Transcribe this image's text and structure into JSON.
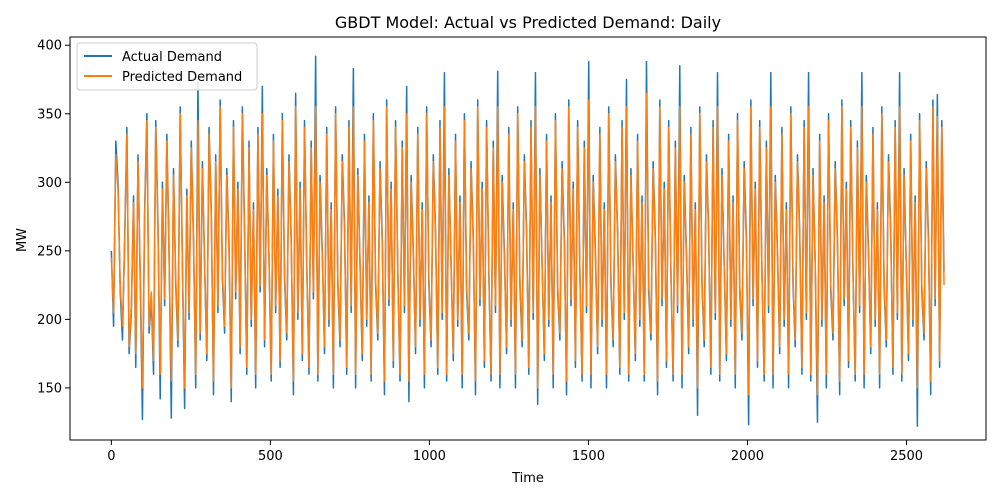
{
  "chart_data": {
    "type": "line",
    "title": "GBDT Model: Actual vs Predicted Demand: Daily",
    "xlabel": "Time",
    "ylabel": "MW",
    "xlim": [
      -130,
      2750
    ],
    "ylim": [
      112,
      406
    ],
    "x_ticks": [
      0,
      500,
      1000,
      1500,
      2000,
      2500
    ],
    "y_ticks": [
      150,
      200,
      250,
      300,
      350,
      400
    ],
    "x_range": [
      0,
      2618
    ],
    "grid": false,
    "legend_position": "top-left",
    "series": [
      {
        "name": "Actual Demand",
        "color": "#1f77b4",
        "values": [
          250,
          195,
          330,
          300,
          220,
          185,
          260,
          340,
          175,
          205,
          290,
          165,
          320,
          230,
          127,
          280,
          350,
          190,
          215,
          160,
          345,
          270,
          142,
          300,
          210,
          335,
          250,
          128,
          310,
          225,
          180,
          355,
          240,
          135,
          295,
          200,
          330,
          260,
          150,
          375,
          185,
          315,
          240,
          170,
          340,
          280,
          145,
          320,
          205,
          360,
          230,
          190,
          310,
          255,
          140,
          345,
          215,
          300,
          175,
          355,
          265,
          160,
          330,
          195,
          285,
          150,
          340,
          220,
          370,
          180,
          310,
          245,
          155,
          335,
          205,
          295,
          165,
          350,
          230,
          185,
          320,
          260,
          145,
          365,
          200,
          300,
          170,
          345,
          240,
          160,
          330,
          215,
          392,
          155,
          305,
          250,
          175,
          340,
          195,
          285,
          150,
          355,
          225,
          180,
          320,
          270,
          160,
          345,
          205,
          383,
          150,
          310,
          240,
          170,
          335,
          195,
          290,
          155,
          350,
          225,
          185,
          315,
          260,
          145,
          360,
          210,
          300,
          165,
          345,
          235,
          155,
          330,
          205,
          370,
          140,
          305,
          250,
          175,
          340,
          195,
          285,
          150,
          355,
          225,
          180,
          320,
          265,
          160,
          345,
          200,
          380,
          155,
          310,
          240,
          170,
          335,
          195,
          290,
          150,
          350,
          220,
          185,
          315,
          260,
          145,
          360,
          210,
          300,
          165,
          345,
          235,
          155,
          330,
          205,
          381,
          150,
          305,
          250,
          175,
          340,
          195,
          285,
          150,
          355,
          225,
          180,
          320,
          265,
          160,
          345,
          200,
          380,
          138,
          310,
          240,
          170,
          335,
          195,
          290,
          150,
          350,
          220,
          185,
          315,
          260,
          145,
          360,
          210,
          300,
          165,
          345,
          235,
          155,
          330,
          205,
          388,
          150,
          305,
          250,
          175,
          340,
          195,
          285,
          150,
          355,
          225,
          180,
          320,
          265,
          160,
          345,
          200,
          375,
          155,
          310,
          240,
          170,
          335,
          195,
          290,
          155,
          388,
          220,
          185,
          315,
          260,
          145,
          360,
          210,
          300,
          165,
          345,
          235,
          155,
          330,
          205,
          385,
          150,
          305,
          250,
          175,
          340,
          195,
          285,
          130,
          355,
          225,
          180,
          320,
          265,
          160,
          345,
          200,
          380,
          155,
          310,
          240,
          170,
          335,
          195,
          290,
          150,
          350,
          220,
          185,
          315,
          260,
          123,
          360,
          210,
          300,
          165,
          345,
          235,
          155,
          330,
          205,
          380,
          150,
          305,
          250,
          175,
          340,
          195,
          285,
          150,
          355,
          225,
          180,
          320,
          265,
          160,
          345,
          200,
          380,
          155,
          310,
          240,
          125,
          335,
          195,
          290,
          150,
          350,
          220,
          185,
          315,
          260,
          145,
          360,
          210,
          300,
          165,
          345,
          235,
          155,
          330,
          205,
          380,
          150,
          305,
          250,
          175,
          340,
          195,
          285,
          150,
          355,
          225,
          180,
          320,
          265,
          160,
          345,
          200,
          380,
          155,
          310,
          240,
          170,
          335,
          195,
          290,
          122,
          350,
          220,
          185,
          315,
          260,
          145,
          360,
          210,
          364,
          165,
          345,
          235
        ]
      },
      {
        "name": "Predicted Demand",
        "color": "#ff7f0e",
        "values": [
          245,
          205,
          320,
          295,
          225,
          195,
          255,
          335,
          180,
          210,
          285,
          175,
          315,
          235,
          150,
          275,
          345,
          195,
          220,
          170,
          340,
          265,
          160,
          295,
          215,
          330,
          245,
          155,
          305,
          230,
          185,
          350,
          240,
          150,
          290,
          205,
          325,
          255,
          160,
          345,
          190,
          310,
          240,
          175,
          335,
          275,
          155,
          315,
          210,
          355,
          235,
          195,
          305,
          250,
          150,
          340,
          220,
          295,
          180,
          350,
          260,
          165,
          325,
          200,
          280,
          160,
          335,
          225,
          350,
          185,
          305,
          245,
          160,
          330,
          210,
          290,
          170,
          345,
          235,
          190,
          315,
          255,
          155,
          355,
          205,
          295,
          175,
          340,
          240,
          165,
          325,
          220,
          355,
          160,
          300,
          245,
          180,
          335,
          200,
          280,
          160,
          350,
          230,
          185,
          315,
          265,
          165,
          340,
          210,
          355,
          160,
          305,
          240,
          175,
          330,
          200,
          285,
          160,
          345,
          230,
          190,
          310,
          255,
          155,
          355,
          215,
          295,
          170,
          340,
          235,
          160,
          325,
          210,
          350,
          155,
          300,
          245,
          180,
          335,
          200,
          280,
          160,
          350,
          230,
          185,
          315,
          260,
          165,
          340,
          205,
          355,
          160,
          305,
          240,
          175,
          330,
          200,
          285,
          160,
          345,
          225,
          190,
          310,
          255,
          155,
          355,
          215,
          295,
          170,
          340,
          235,
          160,
          325,
          210,
          355,
          160,
          300,
          245,
          180,
          335,
          200,
          280,
          160,
          350,
          230,
          185,
          315,
          260,
          165,
          340,
          205,
          355,
          150,
          305,
          240,
          175,
          330,
          200,
          285,
          160,
          345,
          225,
          190,
          310,
          255,
          155,
          355,
          215,
          295,
          170,
          340,
          235,
          160,
          325,
          210,
          360,
          160,
          300,
          245,
          180,
          335,
          200,
          280,
          160,
          350,
          230,
          185,
          315,
          260,
          165,
          340,
          205,
          355,
          160,
          305,
          240,
          175,
          330,
          200,
          285,
          160,
          365,
          225,
          190,
          310,
          255,
          155,
          355,
          215,
          295,
          170,
          340,
          235,
          160,
          325,
          210,
          355,
          160,
          300,
          245,
          180,
          335,
          200,
          280,
          150,
          350,
          230,
          185,
          315,
          260,
          165,
          340,
          205,
          355,
          160,
          305,
          240,
          175,
          330,
          200,
          285,
          160,
          345,
          225,
          190,
          310,
          255,
          145,
          355,
          215,
          295,
          170,
          340,
          235,
          160,
          325,
          210,
          355,
          160,
          300,
          245,
          180,
          335,
          200,
          280,
          160,
          350,
          230,
          185,
          315,
          260,
          165,
          340,
          205,
          355,
          160,
          305,
          240,
          145,
          330,
          200,
          285,
          160,
          345,
          225,
          190,
          310,
          255,
          155,
          355,
          215,
          295,
          170,
          340,
          235,
          160,
          325,
          210,
          355,
          160,
          300,
          245,
          180,
          335,
          200,
          280,
          160,
          350,
          230,
          185,
          315,
          260,
          165,
          340,
          205,
          355,
          160,
          305,
          240,
          175,
          330,
          200,
          285,
          150,
          345,
          225,
          190,
          310,
          255,
          155,
          355,
          215,
          348,
          170,
          340,
          225
        ]
      }
    ]
  }
}
